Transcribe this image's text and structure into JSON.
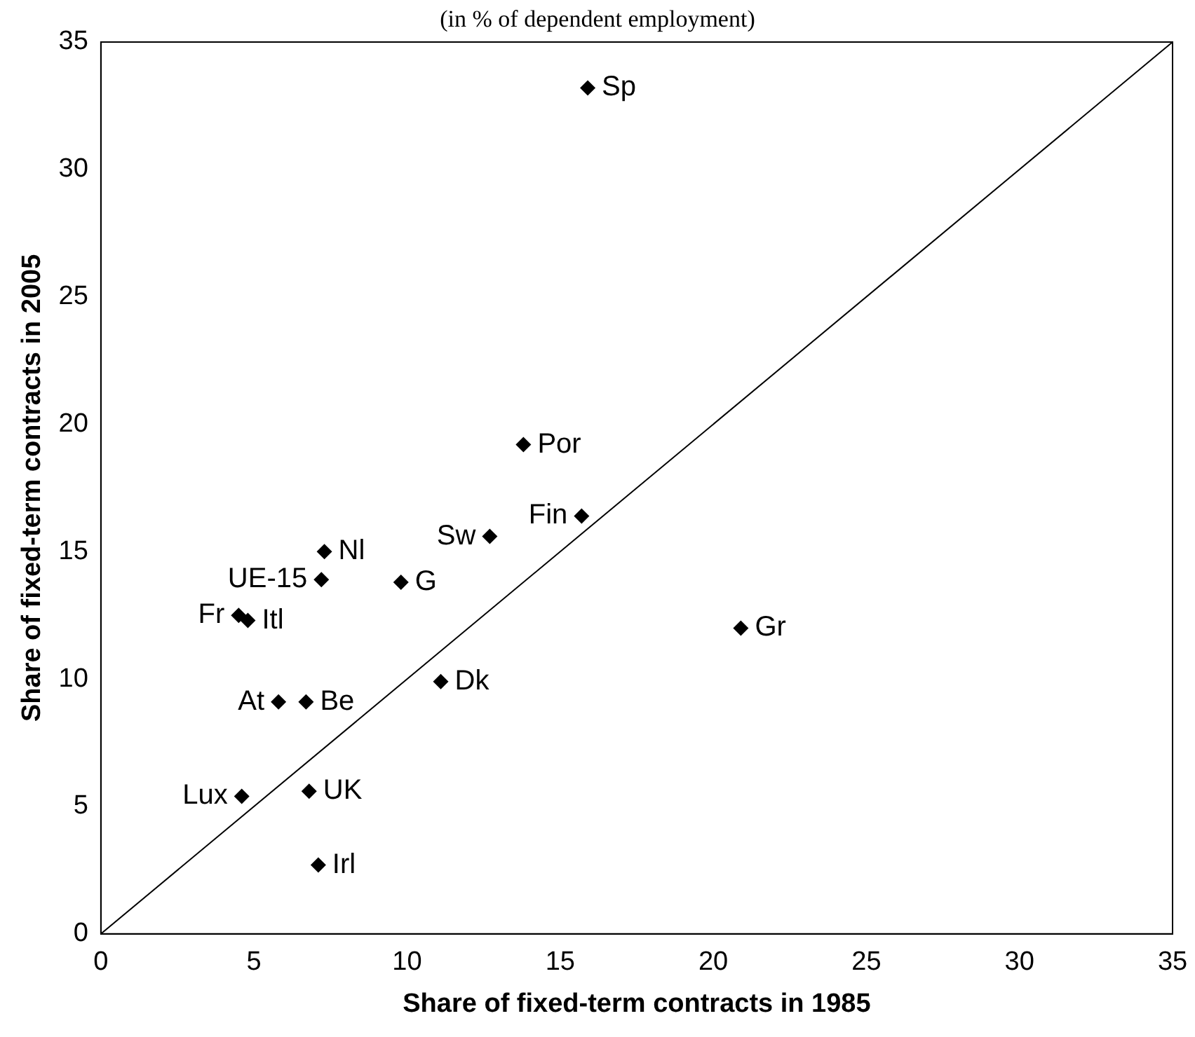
{
  "chart_data": {
    "type": "scatter",
    "title": "(in % of dependent employment)",
    "xlabel": "Share of fixed-term contracts in 1985",
    "ylabel": "Share of fixed-term contracts in 2005",
    "xlim": [
      0,
      35
    ],
    "ylim": [
      0,
      35
    ],
    "xticks": [
      0,
      5,
      10,
      15,
      20,
      25,
      30,
      35
    ],
    "yticks": [
      0,
      5,
      10,
      15,
      20,
      25,
      30,
      35
    ],
    "grid": false,
    "legend": false,
    "marker": "diamond",
    "series": [
      {
        "name": "Sp",
        "color": "#000000",
        "x": [
          15.9
        ],
        "values": [
          33.2
        ]
      },
      {
        "name": "Por",
        "color": "#000000",
        "x": [
          13.8
        ],
        "values": [
          19.2
        ]
      },
      {
        "name": "Fin",
        "color": "#000000",
        "x": [
          15.7
        ],
        "values": [
          16.4
        ]
      },
      {
        "name": "Sw",
        "color": "#000000",
        "x": [
          12.7
        ],
        "values": [
          15.6
        ]
      },
      {
        "name": "Nl",
        "color": "#000000",
        "x": [
          7.3
        ],
        "values": [
          15.0
        ]
      },
      {
        "name": "UE-15",
        "color": "#000000",
        "x": [
          7.2
        ],
        "values": [
          13.9
        ]
      },
      {
        "name": "G",
        "color": "#000000",
        "x": [
          9.8
        ],
        "values": [
          13.8
        ]
      },
      {
        "name": "Fr",
        "color": "#000000",
        "x": [
          4.5
        ],
        "values": [
          12.5
        ]
      },
      {
        "name": "Itl",
        "color": "#000000",
        "x": [
          4.8
        ],
        "values": [
          12.3
        ]
      },
      {
        "name": "Gr",
        "color": "#000000",
        "x": [
          20.9
        ],
        "values": [
          12.0
        ]
      },
      {
        "name": "Dk",
        "color": "#000000",
        "x": [
          11.1
        ],
        "values": [
          9.9
        ]
      },
      {
        "name": "At",
        "color": "#000000",
        "x": [
          5.8
        ],
        "values": [
          9.1
        ]
      },
      {
        "name": "Be",
        "color": "#000000",
        "x": [
          6.7
        ],
        "values": [
          9.1
        ]
      },
      {
        "name": "Lux",
        "color": "#000000",
        "x": [
          4.6
        ],
        "values": [
          5.4
        ]
      },
      {
        "name": "UK",
        "color": "#000000",
        "x": [
          6.8
        ],
        "values": [
          5.6
        ]
      },
      {
        "name": "Irl",
        "color": "#000000",
        "x": [
          7.1
        ],
        "values": [
          2.7
        ]
      },
      {
        "type": "line",
        "color": "#000000",
        "x": [
          0,
          35
        ],
        "values": [
          0,
          35
        ],
        "marker": "none",
        "line_style": "solid"
      }
    ]
  }
}
